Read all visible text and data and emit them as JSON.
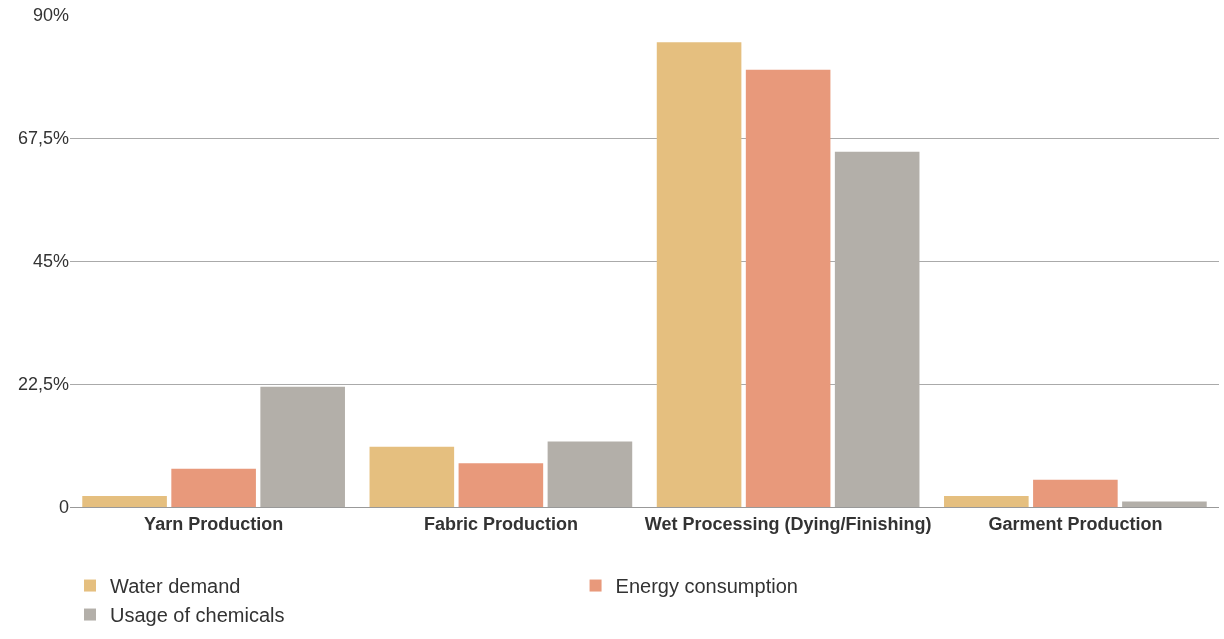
{
  "chart_data": {
    "type": "bar",
    "categories": [
      "Yarn Production",
      "Fabric Production",
      "Wet Processing (Dying/Finishing)",
      "Garment Production"
    ],
    "series": [
      {
        "name": "Water demand",
        "color": "#e5bf7f",
        "values": [
          2,
          11,
          85,
          2
        ]
      },
      {
        "name": "Energy consumption",
        "color": "#e8997b",
        "values": [
          7,
          8,
          80,
          5
        ]
      },
      {
        "name": "Usage of chemicals",
        "color": "#b3afa9",
        "values": [
          22,
          12,
          65,
          1
        ]
      }
    ],
    "ylim": [
      0,
      90
    ],
    "yticks": [
      {
        "value": 0,
        "label": "0"
      },
      {
        "value": 22.5,
        "label": "22,5%"
      },
      {
        "value": 45,
        "label": "45%"
      },
      {
        "value": 67.5,
        "label": "67,5%"
      },
      {
        "value": 90,
        "label": "90%"
      }
    ],
    "grid": "y",
    "legend": "bottom"
  }
}
